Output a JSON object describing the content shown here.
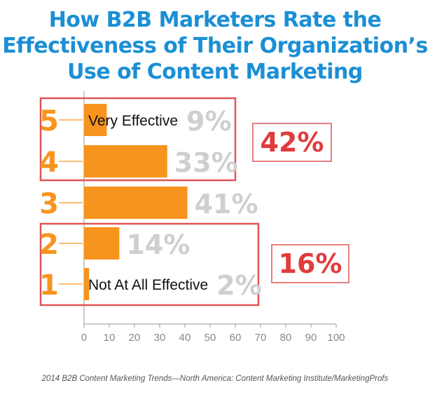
{
  "title": {
    "lines": [
      "How B2B Marketers Rate the",
      "Effectiveness of Their Organization’s",
      "Use of Content Marketing"
    ]
  },
  "chart_data": {
    "type": "bar",
    "orientation": "horizontal",
    "categories": [
      "5",
      "4",
      "3",
      "2",
      "1"
    ],
    "values": [
      9,
      33,
      41,
      14,
      2
    ],
    "value_labels": [
      "9%",
      "33%",
      "41%",
      "14%",
      "2%"
    ],
    "bar_annotations": {
      "5": "Very Effective",
      "1": "Not At All Effective"
    },
    "xlim": [
      0,
      100
    ],
    "xticks": [
      "0",
      "10",
      "20",
      "30",
      "40",
      "50",
      "60",
      "70",
      "80",
      "90",
      "100"
    ],
    "groups": [
      {
        "label": "42%",
        "categories": [
          "5",
          "4"
        ]
      },
      {
        "label": "16%",
        "categories": [
          "2",
          "1"
        ]
      }
    ],
    "colors": {
      "bar": "#f7941d",
      "category": "#f7941d",
      "value_label": "#cfcfcf",
      "group_box": "#e05555",
      "group_label": "#e03c3c",
      "axis": "#999999"
    }
  },
  "source": "2014 B2B Content Marketing Trends—North America: Content Marketing Institute/MarketingProfs"
}
